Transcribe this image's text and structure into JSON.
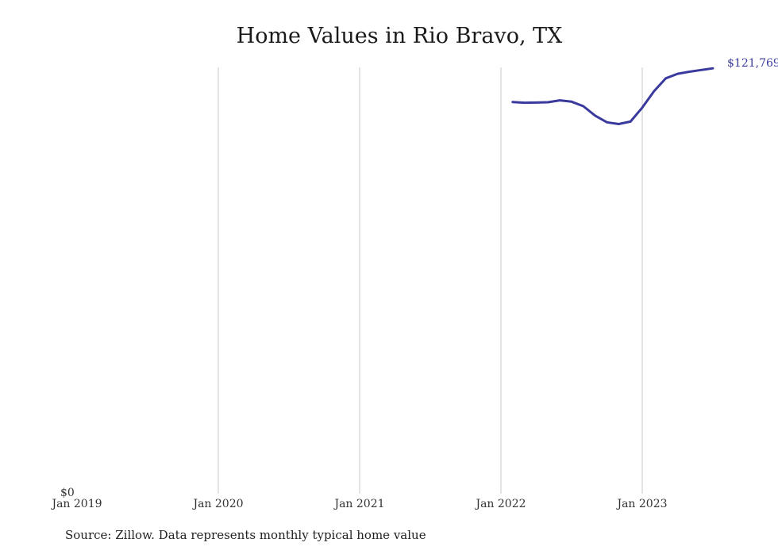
{
  "chart_data": {
    "type": "line",
    "title": "Home Values in Rio Bravo, TX",
    "xlabel": "",
    "ylabel": "",
    "x_ticks": [
      "Jan 2019",
      "Jan 2020",
      "Jan 2021",
      "Jan 2022",
      "Jan 2023"
    ],
    "x_range": [
      "2019-01",
      "2023-12"
    ],
    "ylim": [
      0,
      125000
    ],
    "y_ticks": [
      {
        "value": 0,
        "label": "$0"
      }
    ],
    "grid": "vertical",
    "series": [
      {
        "color": "#3a3a9e",
        "points": [
          {
            "x": "2022-02",
            "y": 112100
          },
          {
            "x": "2022-03",
            "y": 111900
          },
          {
            "x": "2022-04",
            "y": 111950
          },
          {
            "x": "2022-05",
            "y": 112050
          },
          {
            "x": "2022-06",
            "y": 112600
          },
          {
            "x": "2022-07",
            "y": 112200
          },
          {
            "x": "2022-08",
            "y": 110900
          },
          {
            "x": "2022-09",
            "y": 108200
          },
          {
            "x": "2022-10",
            "y": 106300
          },
          {
            "x": "2022-11",
            "y": 105800
          },
          {
            "x": "2022-12",
            "y": 106500
          },
          {
            "x": "2023-01",
            "y": 110500
          },
          {
            "x": "2023-02",
            "y": 115200
          },
          {
            "x": "2023-03",
            "y": 118900
          },
          {
            "x": "2023-04",
            "y": 120200
          },
          {
            "x": "2023-05",
            "y": 120800
          },
          {
            "x": "2023-06",
            "y": 121300
          },
          {
            "x": "2023-07",
            "y": 121769
          }
        ],
        "end_label": "$121,769"
      }
    ]
  },
  "source_note": "Source: Zillow. Data represents monthly typical home value"
}
